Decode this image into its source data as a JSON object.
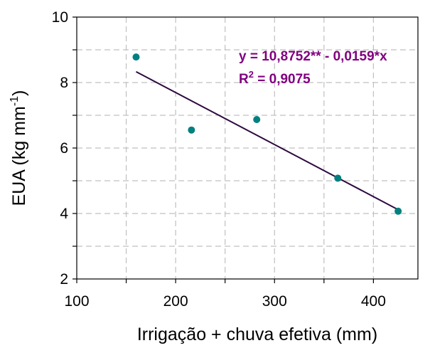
{
  "chart_data": {
    "type": "scatter",
    "xlabel": "Irrigação + chuva efetiva (mm)",
    "ylabel_main": "EUA (kg mm",
    "ylabel_sup": "-1",
    "ylabel_end": ")",
    "xlim": [
      100,
      445
    ],
    "ylim": [
      2,
      10
    ],
    "xticks": [
      100,
      200,
      300,
      400
    ],
    "yticks": [
      2,
      4,
      6,
      8,
      10
    ],
    "grid": true,
    "points": [
      {
        "x": 160,
        "y": 8.78
      },
      {
        "x": 216,
        "y": 6.55
      },
      {
        "x": 282,
        "y": 6.87
      },
      {
        "x": 364,
        "y": 5.08
      },
      {
        "x": 425,
        "y": 4.07
      }
    ],
    "regression": {
      "intercept": 10.8752,
      "slope": -0.0159,
      "x_start": 160,
      "x_end": 425
    },
    "equation_text": "y = 10,8752** - 0,0159*x",
    "r2_prefix": "R",
    "r2_sup": "2",
    "r2_value": " = 0,9075",
    "colors": {
      "points": "#008080",
      "line": "#2d0a40",
      "equation": "#800080",
      "grid": "#c0c0c0",
      "axis": "#000000"
    }
  }
}
